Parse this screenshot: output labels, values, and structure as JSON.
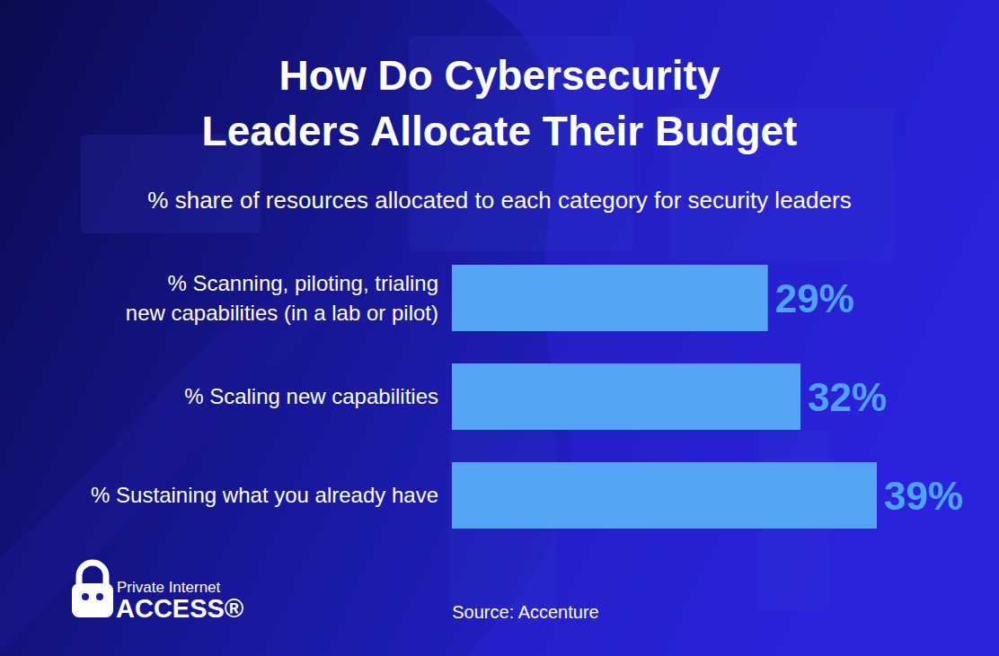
{
  "chart_data": {
    "type": "bar",
    "orientation": "horizontal",
    "title": "How Do Cybersecurity Leaders Allocate Their Budget",
    "subtitle": "% share of resources allocated to each category for security leaders",
    "categories": [
      "% Scanning, piloting, trialing new capabilities (in a lab or pilot)",
      "% Scaling new capabilities",
      "% Sustaining what you already have"
    ],
    "values": [
      29,
      32,
      39
    ],
    "value_labels": [
      "29%",
      "32%",
      "39%"
    ],
    "color": "#55a3f4",
    "xlim": [
      0,
      39
    ],
    "data_labels": true,
    "tick_labels": false,
    "grid": false,
    "source": "Source: Accenture",
    "annotations": [
      "Private Internet",
      "ACCESS®"
    ]
  }
}
